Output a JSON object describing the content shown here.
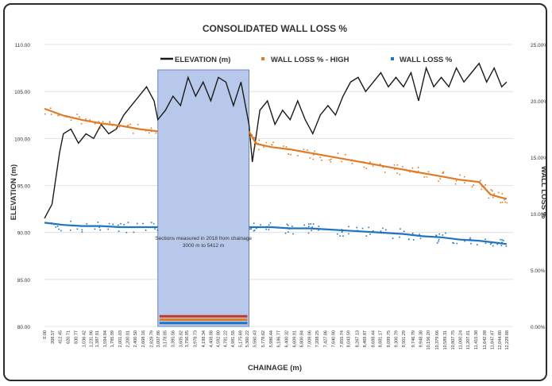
{
  "chart_data": {
    "type": "line",
    "title": "CONSOLIDATED WALL LOSS %",
    "xlabel": "CHAINAGE (m)",
    "ylabel": "ELEVATION (m)",
    "y2label": "WALL LOSS %",
    "ylim": [
      80,
      110
    ],
    "y2lim": [
      0,
      25
    ],
    "yticks": [
      "110.00",
      "105.00",
      "100.00",
      "95.00",
      "90.00",
      "85.00",
      "80.00"
    ],
    "y2ticks": [
      "25.00%",
      "20.00%",
      "15.00%",
      "10.00%",
      "5.00%",
      "0.00%"
    ],
    "xlim": [
      0,
      12400
    ],
    "categories": [
      "0.00",
      "208.57",
      "412.45",
      "620.71",
      "830.77",
      "1,036.42",
      "1,231.96",
      "1,387.91",
      "1,594.94",
      "1,785.99",
      "2,001.03",
      "2,200.01",
      "2,400.50",
      "2,608.16",
      "2,828.79",
      "3,007.86",
      "3,178.85",
      "3,395.56",
      "3,605.82",
      "3,756.95",
      "3,978.73",
      "4,198.34",
      "4,408.08",
      "4,592.80",
      "4,781.22",
      "4,981.55",
      "5,175.69",
      "5,360.22",
      "5,560.43",
      "5,778.62",
      "5,986.44",
      "6,186.77",
      "6,400.32",
      "6,609.91",
      "6,800.84",
      "7,009.06",
      "7,208.25",
      "7,427.86",
      "7,640.90",
      "7,855.74",
      "8,043.59",
      "8,267.13",
      "8,469.87",
      "8,688.44",
      "8,881.17",
      "9,099.75",
      "9,300.79",
      "9,501.29",
      "9,746.79",
      "9,948.38",
      "10,156.20",
      "10,379.66",
      "10,589.31",
      "10,807.75",
      "11,000.24",
      "11,207.01",
      "11,415.38",
      "11,642.98",
      "11,847.47",
      "12,044.80",
      "12,229.88"
    ],
    "legend": [
      "ELEVATION (m)",
      "WALL LOSS % - HIGH",
      "WALL LOSS %"
    ],
    "legend_position": "top",
    "grid": true,
    "annotation": "Sections measured in 2018 from chainage 3000 m to 5412 m",
    "highlight_range": [
      3000,
      5412
    ],
    "series": [
      {
        "name": "ELEVATION (m)",
        "axis": "left",
        "color": "#1a1a1a",
        "x": [
          0,
          200,
          400,
          500,
          700,
          900,
          1100,
          1300,
          1500,
          1700,
          1900,
          2100,
          2300,
          2500,
          2700,
          2900,
          3000,
          3200,
          3400,
          3600,
          3800,
          4000,
          4200,
          4400,
          4600,
          4800,
          5000,
          5200,
          5412,
          5500,
          5700,
          5900,
          6100,
          6300,
          6500,
          6700,
          6900,
          7100,
          7300,
          7500,
          7700,
          7900,
          8100,
          8300,
          8500,
          8700,
          8900,
          9100,
          9300,
          9500,
          9700,
          9900,
          10100,
          10300,
          10500,
          10700,
          10900,
          11100,
          11300,
          11500,
          11700,
          11900,
          12100,
          12229
        ],
        "y": [
          91.5,
          93,
          98.5,
          100.5,
          101,
          99.5,
          100.5,
          100,
          101.5,
          100.5,
          101,
          102.5,
          103.5,
          104.5,
          105.5,
          104,
          102,
          103,
          104.5,
          103.5,
          106.5,
          104.5,
          106,
          104,
          106.5,
          106,
          103.5,
          106,
          101.5,
          97.5,
          103,
          104,
          101.5,
          103,
          102,
          104,
          102,
          100.5,
          102.5,
          103.5,
          102.5,
          104.5,
          106,
          106.5,
          105,
          106,
          107,
          105.5,
          106.5,
          105.5,
          107,
          104,
          107.5,
          105.5,
          106.5,
          105.5,
          107.5,
          106,
          107,
          108,
          106,
          107.5,
          105.5,
          106
        ]
      },
      {
        "name": "WALL LOSS % - HIGH",
        "axis": "right",
        "color": "#e07b24",
        "x": [
          0,
          500,
          1000,
          1500,
          2000,
          2500,
          3000,
          3500,
          4000,
          4500,
          5000,
          5412,
          5600,
          6000,
          6500,
          7000,
          7500,
          8000,
          8500,
          9000,
          9500,
          10000,
          10500,
          11000,
          11500,
          11800,
          12000,
          12229
        ],
        "y": [
          19.3,
          18.7,
          18.3,
          18.0,
          17.8,
          17.5,
          17.3,
          17.3,
          17.3,
          17.3,
          17.3,
          17.3,
          16.2,
          15.9,
          15.7,
          15.4,
          15.1,
          14.8,
          14.5,
          14.2,
          13.9,
          13.6,
          13.3,
          13.0,
          12.8,
          11.7,
          11.5,
          11.3
        ]
      },
      {
        "name": "WALL LOSS %",
        "axis": "right",
        "color": "#1f74c1",
        "x": [
          0,
          500,
          1000,
          1500,
          2000,
          2500,
          3000,
          3500,
          4000,
          4500,
          5000,
          5412,
          5600,
          6000,
          6500,
          7000,
          7500,
          8000,
          8500,
          9000,
          9500,
          10000,
          10500,
          11000,
          11500,
          12000,
          12229
        ],
        "y": [
          9.2,
          9.0,
          8.9,
          8.9,
          8.8,
          8.8,
          8.8,
          8.8,
          8.8,
          8.8,
          8.8,
          8.8,
          8.8,
          8.8,
          8.7,
          8.7,
          8.6,
          8.5,
          8.4,
          8.3,
          8.2,
          8.0,
          7.9,
          7.7,
          7.6,
          7.4,
          7.3
        ]
      }
    ],
    "highlight_bottom_bands": [
      {
        "color": "#c0392b",
        "value": 0.9
      },
      {
        "color": "#e07b24",
        "value": 0.6
      },
      {
        "color": "#1f74c1",
        "value": 0.3
      }
    ]
  }
}
